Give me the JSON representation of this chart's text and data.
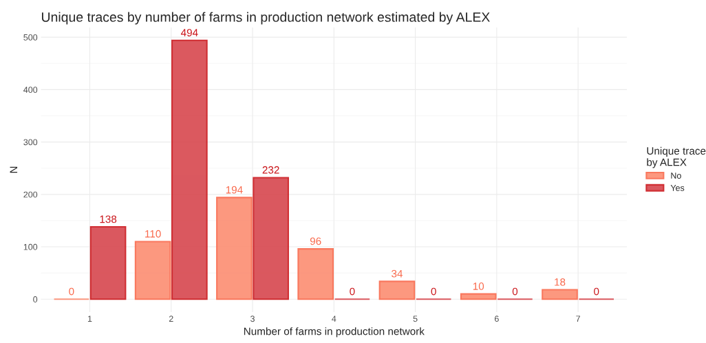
{
  "chart_data": {
    "type": "bar",
    "title": "Unique traces by number of farms in production network estimated by ALEX",
    "xlabel": "Number of farms in production network",
    "ylabel": "N",
    "legend_title": "Unique trace\nby ALEX",
    "categories": [
      "1",
      "2",
      "3",
      "4",
      "5",
      "6",
      "7"
    ],
    "series": [
      {
        "name": "No",
        "color": "#fc8d72",
        "values": [
          0,
          110,
          194,
          96,
          34,
          10,
          18
        ]
      },
      {
        "name": "Yes",
        "color": "#d7474e",
        "values": [
          138,
          494,
          232,
          0,
          0,
          0,
          0
        ]
      }
    ],
    "ylim": [
      -24.7,
      518.7
    ],
    "yticks": [
      0,
      100,
      200,
      300,
      400,
      500
    ],
    "grid": true,
    "legend": "right",
    "data_labels": true
  }
}
